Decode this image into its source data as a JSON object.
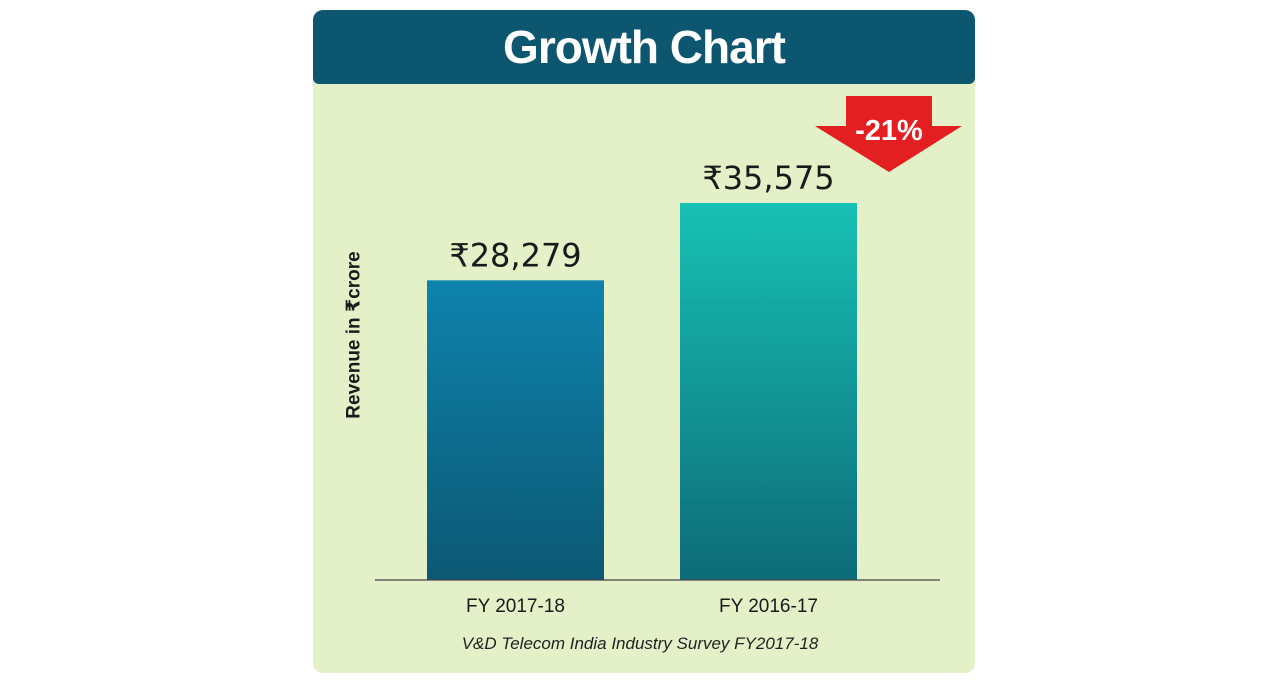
{
  "chart_data": {
    "type": "bar",
    "title": "Growth Chart",
    "ylabel": "Revenue in ₹crore",
    "xlabel": "",
    "categories": [
      "FY 2017-18",
      "FY 2016-17"
    ],
    "values": [
      28279,
      35575
    ],
    "data_labels": [
      "₹28,279",
      "₹35,575"
    ],
    "ylim": [
      0,
      40000
    ],
    "grid": false,
    "legend": "none",
    "annotation": {
      "text": "-21%",
      "shape": "down-arrow",
      "near_category": "FY 2016-17"
    },
    "source": "V&D Telecom India Industry Survey FY2017-18",
    "colors": {
      "bar_1_top": "#0e83ad",
      "bar_1_bottom": "#0c5873",
      "bar_2_top": "#17c1b3",
      "bar_2_bottom": "#0d6b78",
      "arrow": "#e41f22",
      "header": "#0d5670",
      "background": "#e3f0c8"
    }
  }
}
